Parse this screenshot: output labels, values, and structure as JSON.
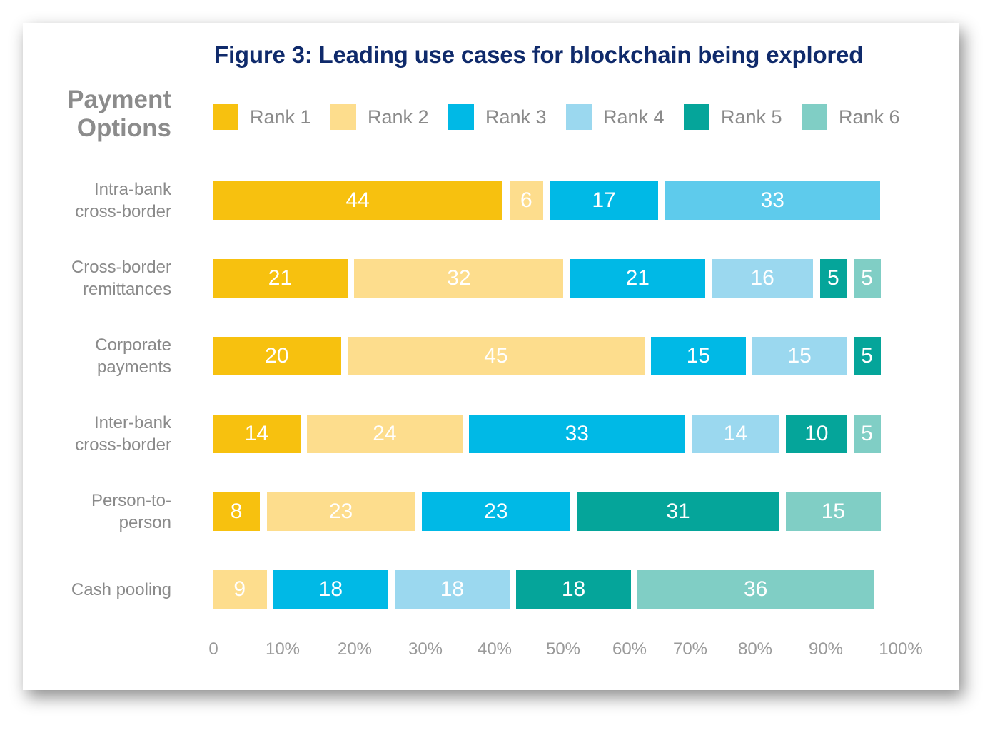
{
  "chart_data": {
    "type": "bar",
    "orientation": "horizontal",
    "stacked": true,
    "title": "Figure 3: Leading use cases for blockchain being explored",
    "ylabel": "Payment Options",
    "xlim": [
      0,
      100
    ],
    "legend": "top",
    "grid": false,
    "series": [
      {
        "name": "Rank 1",
        "color": "#f7c10f"
      },
      {
        "name": "Rank 2",
        "color": "#fddd8d"
      },
      {
        "name": "Rank 3",
        "color": "#00b9e6"
      },
      {
        "name": "Rank 4",
        "color": "#9bd8ef"
      },
      {
        "name": "Rank 5",
        "color": "#05a59a"
      },
      {
        "name": "Rank 6",
        "color": "#80cec5"
      }
    ],
    "categories": [
      {
        "label": [
          "Intra-bank",
          "cross-border"
        ],
        "segments": [
          {
            "rank": 0,
            "value": 44,
            "label": "44"
          },
          {
            "rank": 1,
            "value": 6,
            "label": "6"
          },
          {
            "rank": 2,
            "value": 17,
            "label": "17"
          },
          {
            "rank": 3,
            "value": 33,
            "label": "33",
            "color": "#5ecbec"
          }
        ]
      },
      {
        "label": [
          "Cross-border",
          "remittances"
        ],
        "segments": [
          {
            "rank": 0,
            "value": 21,
            "label": "21"
          },
          {
            "rank": 1,
            "value": 32,
            "label": "32"
          },
          {
            "rank": 2,
            "value": 21,
            "label": "21"
          },
          {
            "rank": 3,
            "value": 16,
            "label": "16"
          },
          {
            "rank": 4,
            "value": 5,
            "label": "5"
          },
          {
            "rank": 5,
            "value": 5,
            "label": "5"
          }
        ]
      },
      {
        "label": [
          "Corporate",
          "payments"
        ],
        "segments": [
          {
            "rank": 0,
            "value": 20,
            "label": "20"
          },
          {
            "rank": 1,
            "value": 45,
            "label": "45"
          },
          {
            "rank": 2,
            "value": 15,
            "label": "15"
          },
          {
            "rank": 3,
            "value": 15,
            "label": "15"
          },
          {
            "rank": 4,
            "value": 5,
            "label": "5"
          }
        ]
      },
      {
        "label": [
          "Inter-bank",
          "cross-border"
        ],
        "segments": [
          {
            "rank": 0,
            "value": 14,
            "label": "14"
          },
          {
            "rank": 1,
            "value": 24,
            "label": "24"
          },
          {
            "rank": 2,
            "value": 33,
            "label": "33"
          },
          {
            "rank": 3,
            "value": 14,
            "label": "14"
          },
          {
            "rank": 4,
            "value": 10,
            "label": "10"
          },
          {
            "rank": 5,
            "value": 5,
            "label": "5"
          }
        ]
      },
      {
        "label": [
          "Person-to-",
          "person"
        ],
        "segments": [
          {
            "rank": 0,
            "value": 8,
            "label": "8"
          },
          {
            "rank": 1,
            "value": 23,
            "label": "23"
          },
          {
            "rank": 2,
            "value": 23,
            "label": "23"
          },
          {
            "rank": 4,
            "value": 31,
            "label": "31"
          },
          {
            "rank": 5,
            "value": 15,
            "label": "15"
          }
        ]
      },
      {
        "label": [
          "Cash pooling"
        ],
        "segments": [
          {
            "rank": 1,
            "value": 9,
            "label": "9"
          },
          {
            "rank": 2,
            "value": 18,
            "label": "18"
          },
          {
            "rank": 3,
            "value": 18,
            "label": "18"
          },
          {
            "rank": 4,
            "value": 18,
            "label": "18"
          },
          {
            "rank": 5,
            "value": 36,
            "label": "36"
          }
        ]
      }
    ],
    "x_ticks": [
      "0",
      "10%",
      "20%",
      "30%",
      "40%",
      "50%",
      "60%",
      "70%",
      "80%",
      "90%",
      "100%"
    ]
  }
}
